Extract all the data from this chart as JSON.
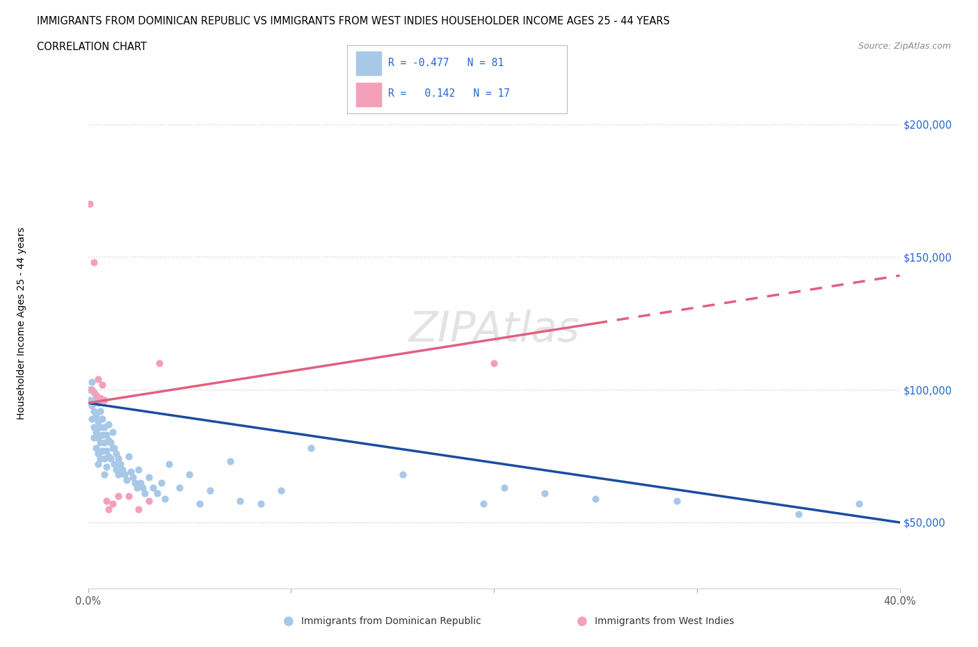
{
  "title_line1": "IMMIGRANTS FROM DOMINICAN REPUBLIC VS IMMIGRANTS FROM WEST INDIES HOUSEHOLDER INCOME AGES 25 - 44 YEARS",
  "title_line2": "CORRELATION CHART",
  "source_text": "Source: ZipAtlas.com",
  "ylabel": "Householder Income Ages 25 - 44 years",
  "xlim": [
    0.0,
    0.4
  ],
  "ylim": [
    25000,
    220000
  ],
  "blue_color": "#A8C8E8",
  "blue_line_color": "#1A4CA0",
  "pink_color": "#F4A0B8",
  "pink_line_color": "#E06080",
  "grid_color": "#CCCCCC",
  "bg_color": "#FFFFFF",
  "legend_label_blue": "Immigrants from Dominican Republic",
  "legend_label_pink": "Immigrants from West Indies",
  "blue_scatter_x": [
    0.001,
    0.001,
    0.002,
    0.002,
    0.002,
    0.003,
    0.003,
    0.003,
    0.003,
    0.004,
    0.004,
    0.004,
    0.004,
    0.005,
    0.005,
    0.005,
    0.005,
    0.005,
    0.006,
    0.006,
    0.006,
    0.006,
    0.007,
    0.007,
    0.007,
    0.008,
    0.008,
    0.008,
    0.008,
    0.009,
    0.009,
    0.009,
    0.01,
    0.01,
    0.01,
    0.011,
    0.011,
    0.012,
    0.012,
    0.013,
    0.013,
    0.014,
    0.014,
    0.015,
    0.015,
    0.016,
    0.017,
    0.018,
    0.019,
    0.02,
    0.021,
    0.022,
    0.023,
    0.024,
    0.025,
    0.026,
    0.027,
    0.028,
    0.03,
    0.032,
    0.034,
    0.036,
    0.038,
    0.04,
    0.045,
    0.05,
    0.055,
    0.06,
    0.07,
    0.075,
    0.085,
    0.095,
    0.11,
    0.155,
    0.195,
    0.205,
    0.225,
    0.25,
    0.29,
    0.35,
    0.38
  ],
  "blue_scatter_y": [
    100000,
    96000,
    103000,
    94000,
    89000,
    99000,
    92000,
    86000,
    82000,
    97000,
    90000,
    84000,
    78000,
    95000,
    88000,
    82000,
    76000,
    72000,
    92000,
    86000,
    80000,
    74000,
    89000,
    83000,
    77000,
    86000,
    80000,
    74000,
    68000,
    83000,
    77000,
    71000,
    87000,
    81000,
    75000,
    80000,
    74000,
    84000,
    78000,
    78000,
    72000,
    76000,
    70000,
    74000,
    68000,
    72000,
    70000,
    68000,
    66000,
    75000,
    69000,
    67000,
    65000,
    63000,
    70000,
    65000,
    63000,
    61000,
    67000,
    63000,
    61000,
    65000,
    59000,
    72000,
    63000,
    68000,
    57000,
    62000,
    73000,
    58000,
    57000,
    62000,
    78000,
    68000,
    57000,
    63000,
    61000,
    59000,
    58000,
    53000,
    57000
  ],
  "pink_scatter_x": [
    0.001,
    0.002,
    0.003,
    0.004,
    0.005,
    0.006,
    0.007,
    0.008,
    0.009,
    0.01,
    0.012,
    0.015,
    0.02,
    0.025,
    0.03,
    0.035,
    0.2
  ],
  "pink_scatter_y": [
    170000,
    100000,
    148000,
    98000,
    104000,
    97000,
    102000,
    96000,
    58000,
    55000,
    57000,
    60000,
    60000,
    55000,
    58000,
    110000,
    110000
  ]
}
